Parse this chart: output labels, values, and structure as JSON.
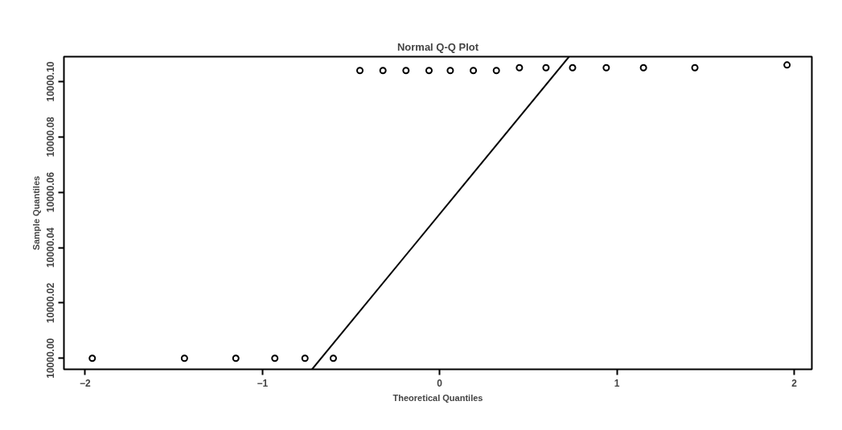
{
  "chart_data": {
    "type": "scatter",
    "title": "Normal Q-Q Plot",
    "xlabel": "Theoretical Quantiles",
    "ylabel": "Sample Quantiles",
    "xlim": [
      -2.12,
      2.1
    ],
    "ylim": [
      9999.996,
      10000.109
    ],
    "xticks": [
      -2,
      -1,
      0,
      1,
      2
    ],
    "yticks": [
      {
        "value": 10000.0,
        "label": "10000.00"
      },
      {
        "value": 10000.02,
        "label": "10000.02"
      },
      {
        "value": 10000.04,
        "label": "10000.04"
      },
      {
        "value": 10000.06,
        "label": "10000.06"
      },
      {
        "value": 10000.08,
        "label": "10000.08"
      },
      {
        "value": 10000.1,
        "label": "10000.10"
      }
    ],
    "grid": false,
    "marker": "circle",
    "series": [
      {
        "color": "#000000",
        "x": [
          -1.96,
          -1.44,
          -1.15,
          -0.93,
          -0.76,
          -0.6,
          -0.45,
          -0.32,
          -0.19,
          -0.06,
          0.06,
          0.19,
          0.32,
          0.45,
          0.6,
          0.75,
          0.94,
          1.15,
          1.44,
          1.96
        ],
        "values": [
          10000.0,
          10000.0,
          10000.0,
          10000.0,
          10000.0,
          10000.0,
          10000.104,
          10000.104,
          10000.104,
          10000.104,
          10000.104,
          10000.104,
          10000.104,
          10000.105,
          10000.105,
          10000.105,
          10000.105,
          10000.105,
          10000.105,
          10000.106
        ]
      },
      {
        "type": "line",
        "marker": "none",
        "color": "#000000",
        "x": [
          -0.72,
          0.73
        ],
        "values": [
          9999.996,
          10000.109
        ]
      }
    ]
  }
}
